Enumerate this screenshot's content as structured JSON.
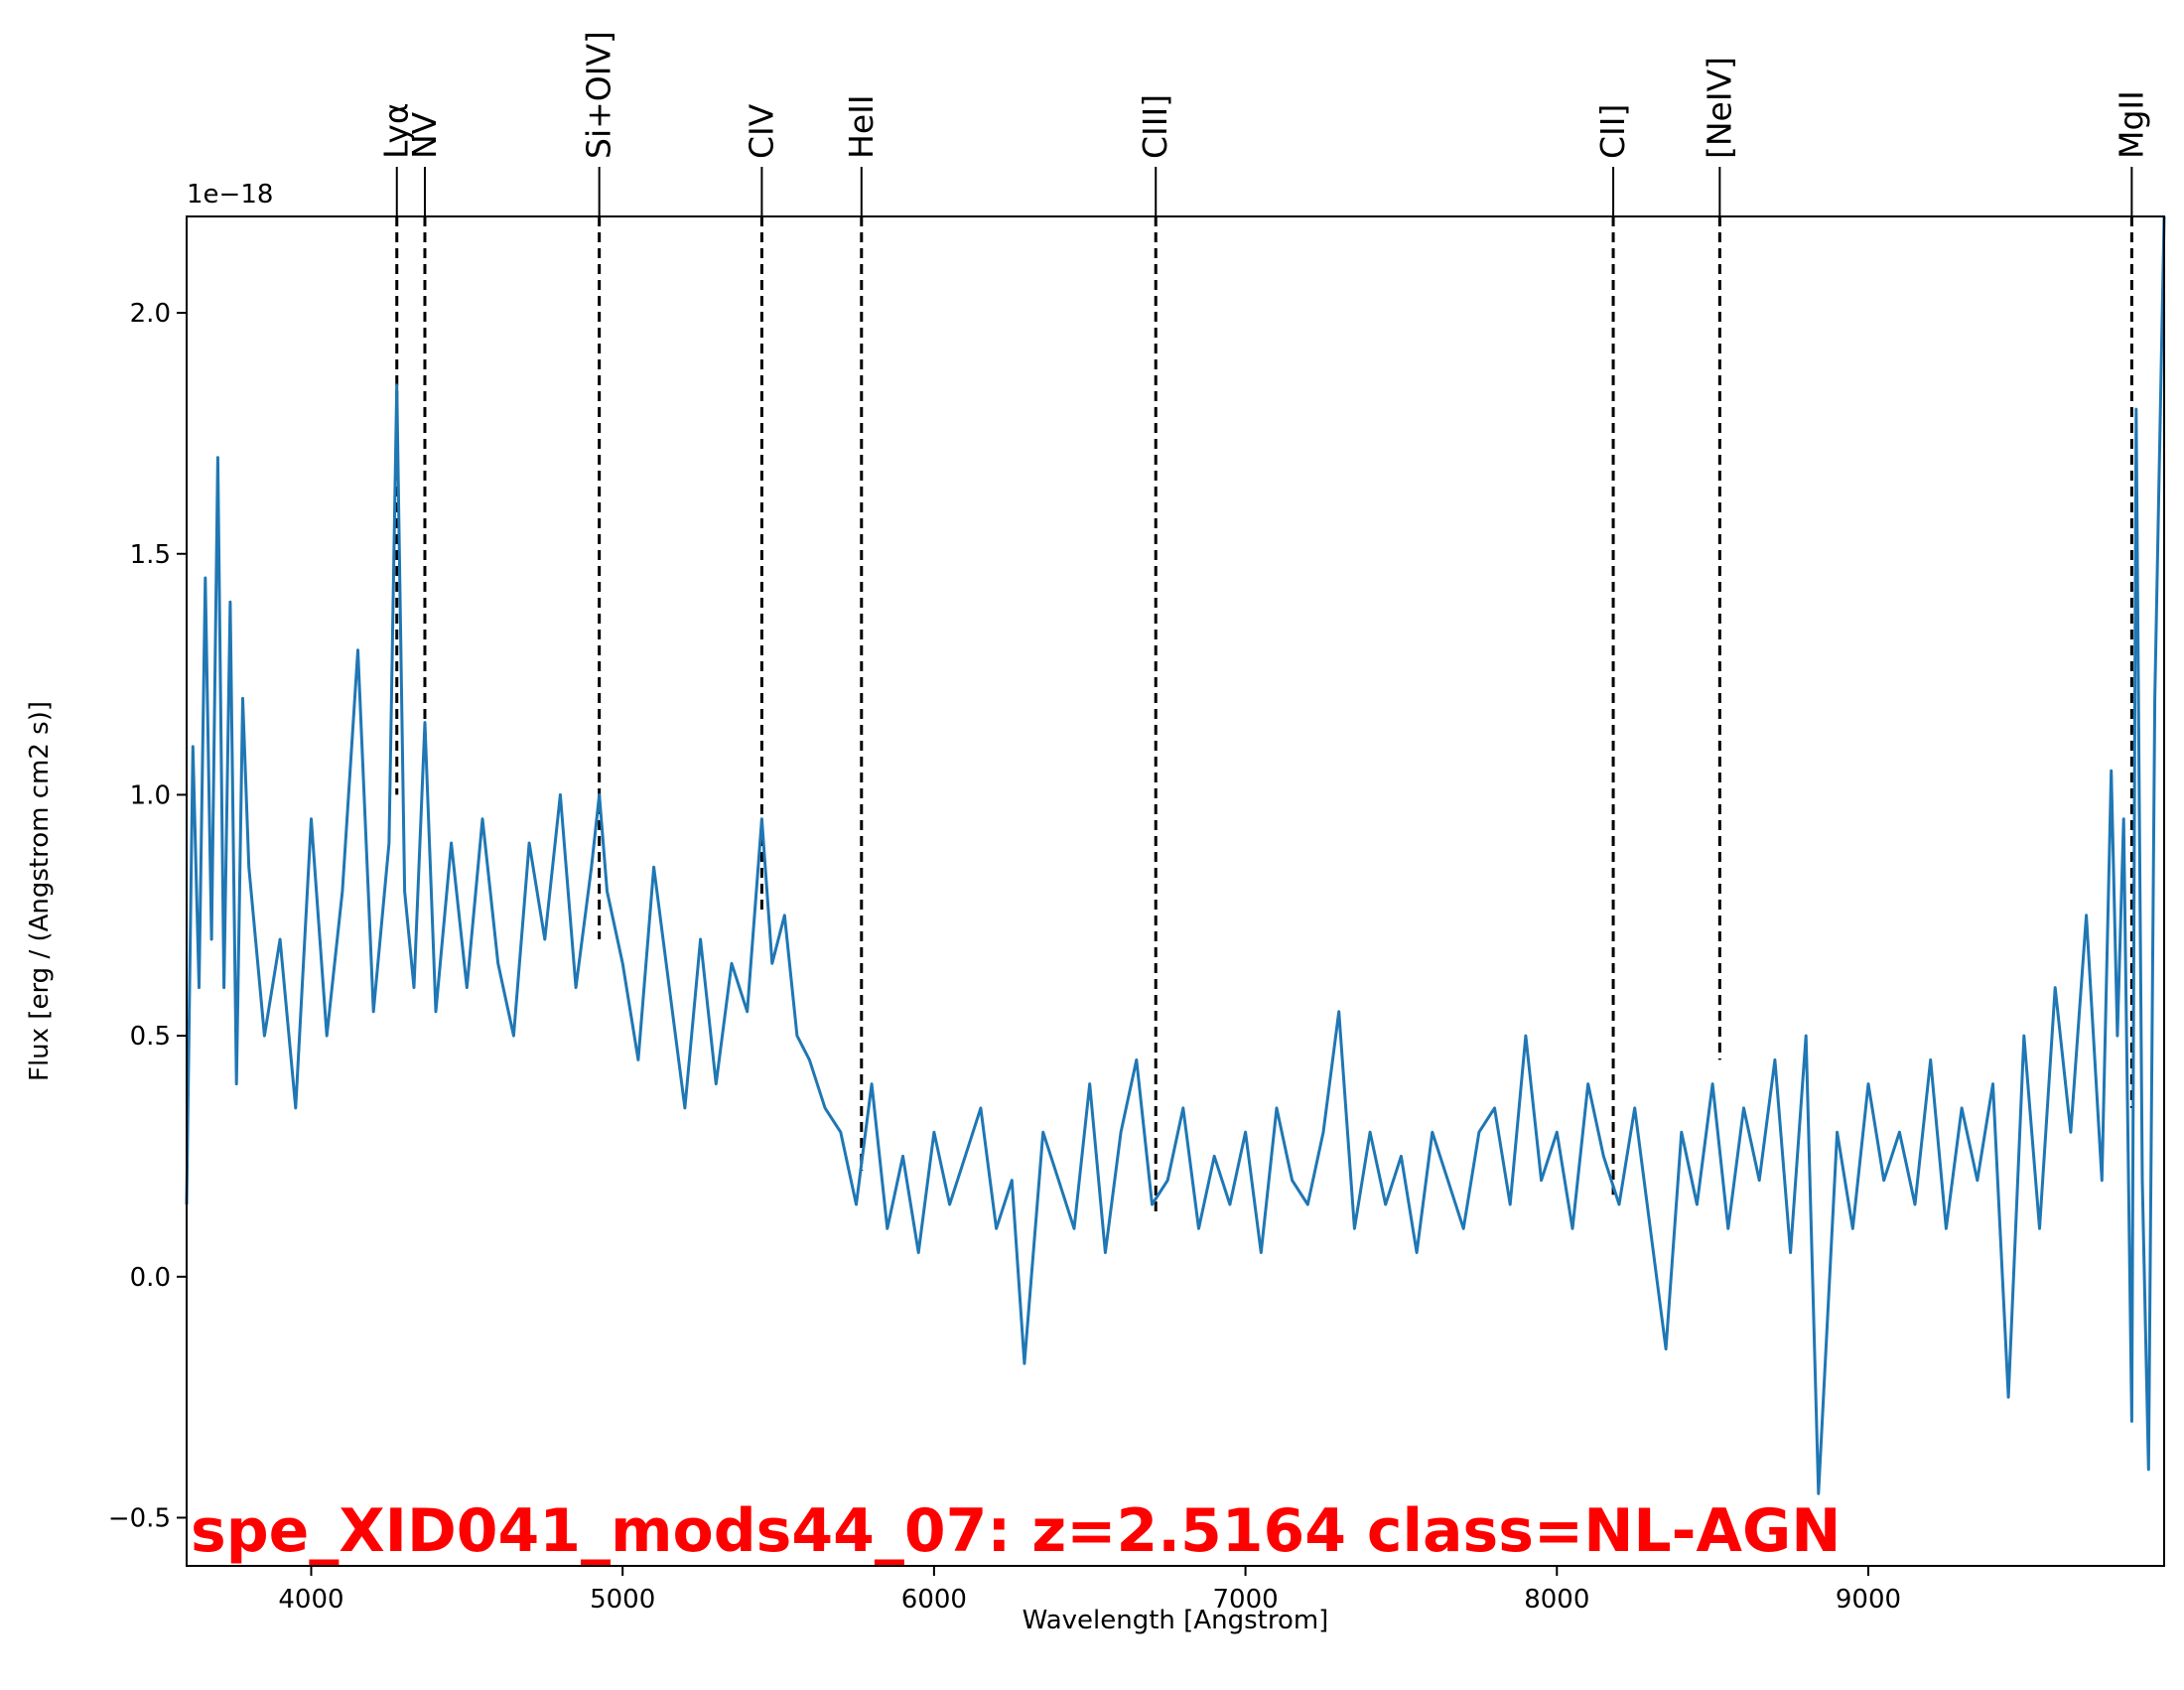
{
  "chart_data": {
    "type": "line",
    "xlabel": "Wavelength [Angstrom]",
    "ylabel": "Flux [erg / (Angstrom cm2 s)]",
    "y_offset_label": "1e−18",
    "xlim": [
      3600,
      9950
    ],
    "ylim": [
      -0.6,
      2.2
    ],
    "x_ticks": [
      4000,
      5000,
      6000,
      7000,
      8000,
      9000
    ],
    "x_tick_labels": [
      "4000",
      "5000",
      "6000",
      "7000",
      "8000",
      "9000"
    ],
    "y_ticks": [
      -0.5,
      0.0,
      0.5,
      1.0,
      1.5,
      2.0
    ],
    "y_tick_labels": [
      "−0.5",
      "0.0",
      "0.5",
      "1.0",
      "1.5",
      "2.0"
    ],
    "line_color": "#1f77b4",
    "annotation": {
      "text": "spe_XID041_mods44_07: z=2.5164 class=NL-AGN",
      "color": "#ff0000"
    },
    "emission_lines": [
      {
        "label": "Lyα",
        "wavelength": 4275,
        "bottom": 1.0
      },
      {
        "label": "NV",
        "wavelength": 4365,
        "bottom": 1.1
      },
      {
        "label": "Si+OIV]",
        "wavelength": 4925,
        "bottom": 0.7
      },
      {
        "label": "CIV",
        "wavelength": 5447,
        "bottom": 0.75
      },
      {
        "label": "HeII",
        "wavelength": 5767,
        "bottom": 0.22
      },
      {
        "label": "CIII]",
        "wavelength": 6712,
        "bottom": 0.13
      },
      {
        "label": "CII]",
        "wavelength": 8181,
        "bottom": 0.17
      },
      {
        "label": "[NeIV]",
        "wavelength": 8523,
        "bottom": 0.45
      },
      {
        "label": "MgII",
        "wavelength": 9846,
        "bottom": 0.35
      }
    ],
    "series": [
      {
        "x": [
          3600,
          3620,
          3640,
          3660,
          3680,
          3700,
          3720,
          3740,
          3760,
          3780,
          3800,
          3850,
          3900,
          3950,
          4000,
          4050,
          4100,
          4150,
          4200,
          4250,
          4275,
          4300,
          4330,
          4365,
          4400,
          4450,
          4500,
          4550,
          4600,
          4650,
          4700,
          4750,
          4800,
          4850,
          4900,
          4925,
          4950,
          5000,
          5050,
          5100,
          5150,
          5200,
          5250,
          5300,
          5350,
          5400,
          5447,
          5480,
          5520,
          5560,
          5600,
          5650,
          5700,
          5750,
          5800,
          5850,
          5900,
          5950,
          6000,
          6050,
          6100,
          6150,
          6200,
          6250,
          6290,
          6350,
          6400,
          6450,
          6500,
          6550,
          6600,
          6650,
          6700,
          6750,
          6800,
          6850,
          6900,
          6950,
          7000,
          7050,
          7100,
          7150,
          7200,
          7250,
          7300,
          7350,
          7400,
          7450,
          7500,
          7550,
          7600,
          7650,
          7700,
          7750,
          7800,
          7850,
          7900,
          7950,
          8000,
          8050,
          8100,
          8150,
          8200,
          8250,
          8300,
          8350,
          8400,
          8450,
          8500,
          8550,
          8600,
          8650,
          8700,
          8750,
          8800,
          8840,
          8900,
          8950,
          9000,
          9050,
          9100,
          9150,
          9200,
          9250,
          9300,
          9350,
          9400,
          9450,
          9500,
          9550,
          9600,
          9650,
          9700,
          9750,
          9780,
          9800,
          9820,
          9846,
          9860,
          9880,
          9900,
          9920,
          9950
        ],
        "y": [
          0.15,
          1.1,
          0.6,
          1.45,
          0.7,
          1.7,
          0.6,
          1.4,
          0.4,
          1.2,
          0.85,
          0.5,
          0.7,
          0.35,
          0.95,
          0.5,
          0.8,
          1.3,
          0.55,
          0.9,
          1.85,
          0.8,
          0.6,
          1.15,
          0.55,
          0.9,
          0.6,
          0.95,
          0.65,
          0.5,
          0.9,
          0.7,
          1.0,
          0.6,
          0.85,
          1.0,
          0.8,
          0.65,
          0.45,
          0.85,
          0.6,
          0.35,
          0.7,
          0.4,
          0.65,
          0.55,
          0.95,
          0.65,
          0.75,
          0.5,
          0.45,
          0.35,
          0.3,
          0.15,
          0.4,
          0.1,
          0.25,
          0.05,
          0.3,
          0.15,
          0.25,
          0.35,
          0.1,
          0.2,
          -0.18,
          0.3,
          0.2,
          0.1,
          0.4,
          0.05,
          0.3,
          0.45,
          0.15,
          0.2,
          0.35,
          0.1,
          0.25,
          0.15,
          0.3,
          0.05,
          0.35,
          0.2,
          0.15,
          0.3,
          0.55,
          0.1,
          0.3,
          0.15,
          0.25,
          0.05,
          0.3,
          0.2,
          0.1,
          0.3,
          0.35,
          0.15,
          0.5,
          0.2,
          0.3,
          0.1,
          0.4,
          0.25,
          0.15,
          0.35,
          0.1,
          -0.15,
          0.3,
          0.15,
          0.4,
          0.1,
          0.35,
          0.2,
          0.45,
          0.05,
          0.5,
          -0.45,
          0.3,
          0.1,
          0.4,
          0.2,
          0.3,
          0.15,
          0.45,
          0.1,
          0.35,
          0.2,
          0.4,
          -0.25,
          0.5,
          0.1,
          0.6,
          0.3,
          0.75,
          0.2,
          1.05,
          0.5,
          0.95,
          -0.3,
          1.8,
          0.2,
          -0.4,
          1.2,
          2.2
        ]
      }
    ]
  }
}
